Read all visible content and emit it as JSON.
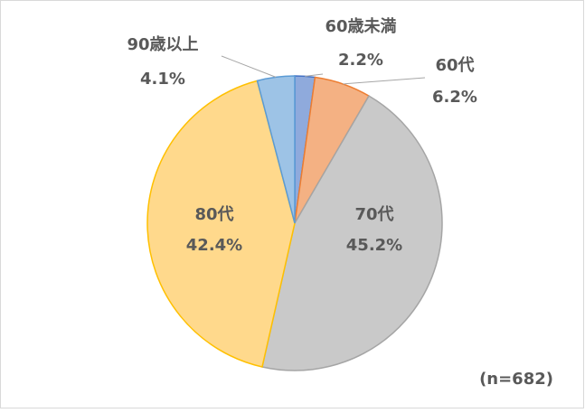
{
  "chart_data": {
    "type": "pie",
    "categories": [
      "60歳未満",
      "60代",
      "70代",
      "80代",
      "90歳以上"
    ],
    "values": [
      2.2,
      6.2,
      45.2,
      42.4,
      4.1
    ],
    "value_labels": [
      "2.2%",
      "6.2%",
      "45.2%",
      "42.4%",
      "4.1%"
    ],
    "colors": [
      "#8faadc",
      "#f4b183",
      "#c9c9c9",
      "#ffd98c",
      "#9dc3e6"
    ],
    "annotation": "(n=682)"
  }
}
